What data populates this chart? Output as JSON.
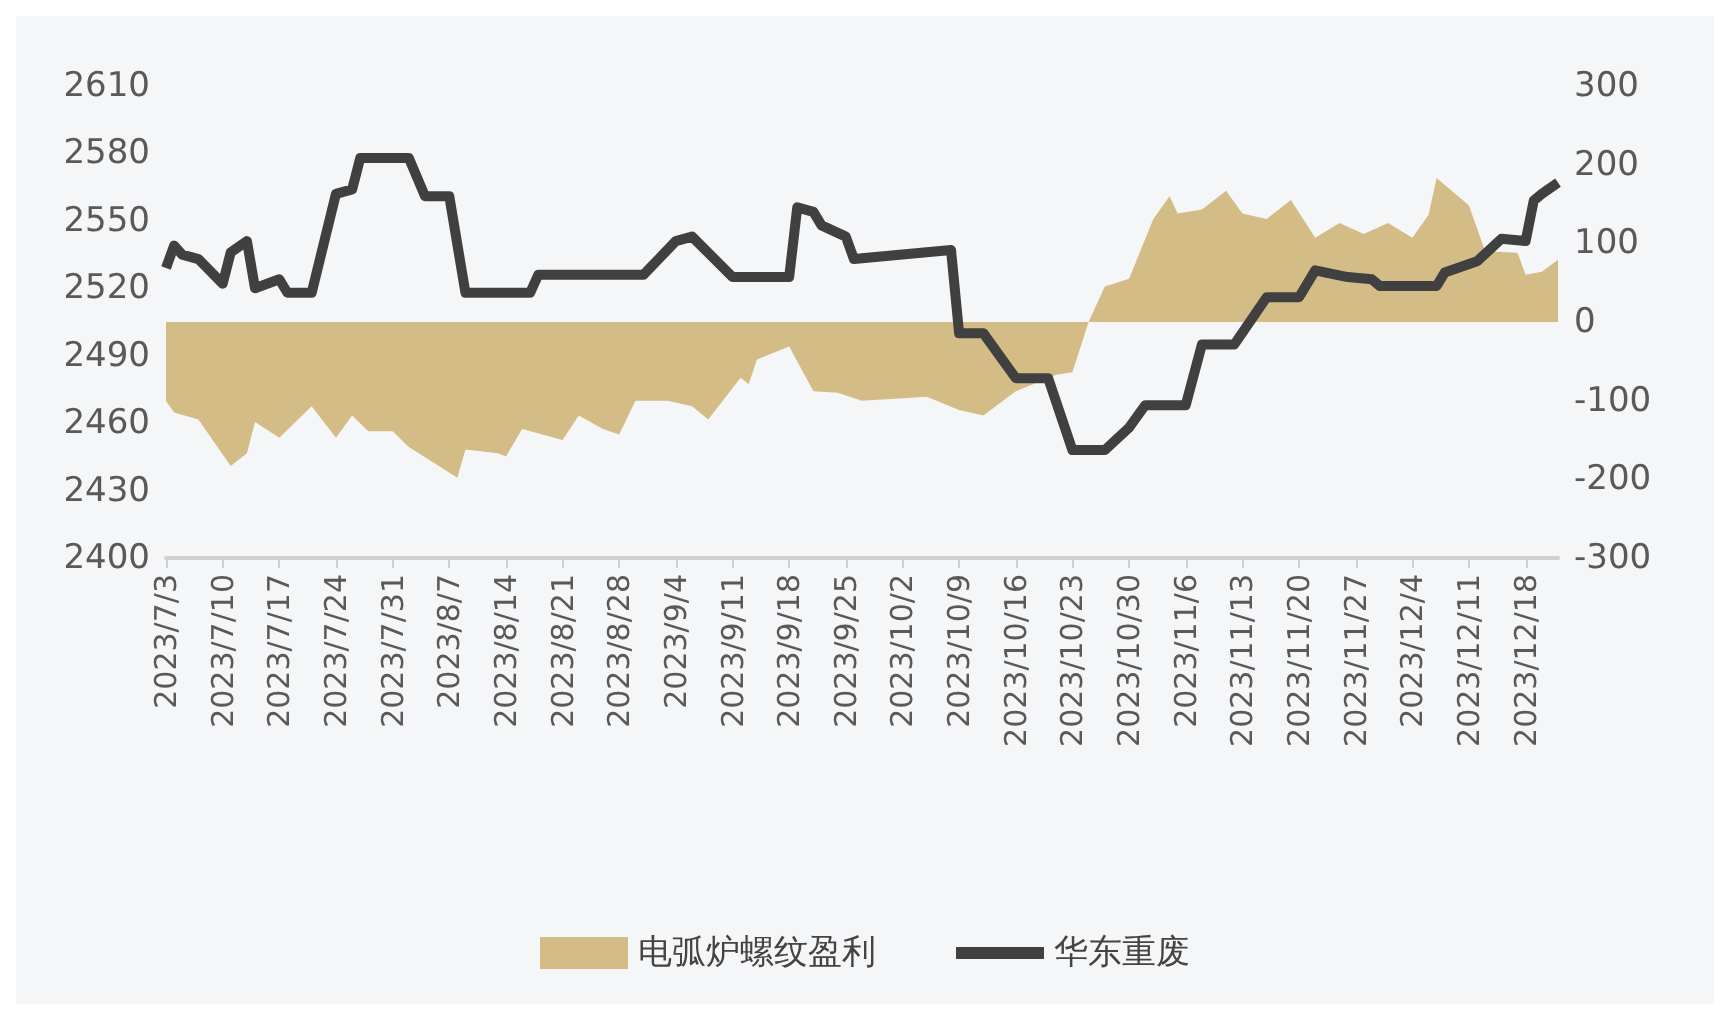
{
  "chart_data": {
    "type": "line",
    "legend": "bottom",
    "grid": false,
    "marker": "none",
    "line_style": "solid",
    "xlim": [
      "2023-07-03",
      "2023-12-22"
    ],
    "xticks": [
      {
        "value": "2023-07-03",
        "label": "2023/7/3"
      },
      {
        "value": "2023-07-10",
        "label": "2023/7/10"
      },
      {
        "value": "2023-07-17",
        "label": "2023/7/17"
      },
      {
        "value": "2023-07-24",
        "label": "2023/7/24"
      },
      {
        "value": "2023-07-31",
        "label": "2023/7/31"
      },
      {
        "value": "2023-08-07",
        "label": "2023/8/7"
      },
      {
        "value": "2023-08-14",
        "label": "2023/8/14"
      },
      {
        "value": "2023-08-21",
        "label": "2023/8/21"
      },
      {
        "value": "2023-08-28",
        "label": "2023/8/28"
      },
      {
        "value": "2023-09-04",
        "label": "2023/9/4"
      },
      {
        "value": "2023-09-11",
        "label": "2023/9/11"
      },
      {
        "value": "2023-09-18",
        "label": "2023/9/18"
      },
      {
        "value": "2023-09-25",
        "label": "2023/9/25"
      },
      {
        "value": "2023-10-02",
        "label": "2023/10/2"
      },
      {
        "value": "2023-10-09",
        "label": "2023/10/9"
      },
      {
        "value": "2023-10-16",
        "label": "2023/10/16"
      },
      {
        "value": "2023-10-23",
        "label": "2023/10/23"
      },
      {
        "value": "2023-10-30",
        "label": "2023/10/30"
      },
      {
        "value": "2023-11-06",
        "label": "2023/11/6"
      },
      {
        "value": "2023-11-13",
        "label": "2023/11/13"
      },
      {
        "value": "2023-11-20",
        "label": "2023/11/20"
      },
      {
        "value": "2023-11-27",
        "label": "2023/11/27"
      },
      {
        "value": "2023-12-04",
        "label": "2023/12/4"
      },
      {
        "value": "2023-12-11",
        "label": "2023/12/11"
      },
      {
        "value": "2023-12-18",
        "label": "2023/12/18"
      }
    ],
    "ylim": [
      2400,
      2610
    ],
    "yticks": [
      2400,
      2430,
      2460,
      2490,
      2520,
      2550,
      2580,
      2610
    ],
    "y2lim": [
      -300,
      300
    ],
    "y2ticks": [
      -300,
      -200,
      -100,
      0,
      100,
      200,
      300
    ],
    "series": [
      {
        "name": "电弧炉螺纹盈利",
        "type": "area",
        "axis": "y2",
        "color": "#d4bc87",
        "x": [
          "2023-07-03",
          "2023-07-04",
          "2023-07-07",
          "2023-07-11",
          "2023-07-13",
          "2023-07-14",
          "2023-07-17",
          "2023-07-21",
          "2023-07-24",
          "2023-07-26",
          "2023-07-28",
          "2023-07-31",
          "2023-08-02",
          "2023-08-08",
          "2023-08-09",
          "2023-08-13",
          "2023-08-14",
          "2023-08-16",
          "2023-08-21",
          "2023-08-23",
          "2023-08-26",
          "2023-08-28",
          "2023-08-30",
          "2023-09-03",
          "2023-09-06",
          "2023-09-08",
          "2023-09-12",
          "2023-09-13",
          "2023-09-14",
          "2023-09-18",
          "2023-09-21",
          "2023-09-24",
          "2023-09-27",
          "2023-10-05",
          "2023-10-09",
          "2023-10-12",
          "2023-10-16",
          "2023-10-21",
          "2023-10-23",
          "2023-10-25",
          "2023-10-27",
          "2023-10-30",
          "2023-11-02",
          "2023-11-04",
          "2023-11-05",
          "2023-11-08",
          "2023-11-11",
          "2023-11-13",
          "2023-11-16",
          "2023-11-19",
          "2023-11-22",
          "2023-11-25",
          "2023-11-28",
          "2023-12-01",
          "2023-12-04",
          "2023-12-06",
          "2023-12-07",
          "2023-12-11",
          "2023-12-13",
          "2023-12-17",
          "2023-12-18",
          "2023-12-20",
          "2023-12-22"
        ],
        "values": [
          -100,
          -115,
          -124,
          -183,
          -167,
          -127,
          -147,
          -107,
          -147,
          -119,
          -139,
          -139,
          -159,
          -198,
          -162,
          -167,
          -171,
          -136,
          -150,
          -119,
          -136,
          -143,
          -100,
          -100,
          -107,
          -124,
          -71,
          -79,
          -48,
          -31,
          -88,
          -90,
          -100,
          -95,
          -112,
          -119,
          -88,
          -67,
          -64,
          0,
          45,
          55,
          131,
          160,
          138,
          143,
          167,
          138,
          131,
          155,
          107,
          126,
          112,
          126,
          107,
          136,
          183,
          148,
          90,
          88,
          60,
          64,
          79
        ]
      },
      {
        "name": "华东重废",
        "color": "#404040",
        "x": [
          "2023-07-03",
          "2023-07-04",
          "2023-07-05",
          "2023-07-07",
          "2023-07-10",
          "2023-07-11",
          "2023-07-13",
          "2023-07-14",
          "2023-07-17",
          "2023-07-18",
          "2023-07-21",
          "2023-07-24",
          "2023-07-26",
          "2023-07-27",
          "2023-08-02",
          "2023-08-04",
          "2023-08-07",
          "2023-08-09",
          "2023-08-17",
          "2023-08-18",
          "2023-08-31",
          "2023-09-04",
          "2023-09-06",
          "2023-09-11",
          "2023-09-18",
          "2023-09-19",
          "2023-09-21",
          "2023-09-22",
          "2023-09-25",
          "2023-09-26",
          "2023-10-08",
          "2023-10-09",
          "2023-10-12",
          "2023-10-16",
          "2023-10-20",
          "2023-10-23",
          "2023-10-27",
          "2023-10-30",
          "2023-11-01",
          "2023-11-06",
          "2023-11-08",
          "2023-11-12",
          "2023-11-16",
          "2023-11-20",
          "2023-11-22",
          "2023-11-26",
          "2023-11-29",
          "2023-11-30",
          "2023-12-07",
          "2023-12-08",
          "2023-12-12",
          "2023-12-15",
          "2023-12-18",
          "2023-12-19",
          "2023-12-20",
          "2023-12-22"
        ],
        "values": [
          2529,
          2539,
          2535,
          2533,
          2522,
          2536,
          2541,
          2520,
          2524,
          2518,
          2518,
          2562,
          2564,
          2578,
          2578,
          2561,
          2561,
          2518,
          2518,
          2526,
          2526,
          2541,
          2543,
          2525,
          2525,
          2556,
          2554,
          2548,
          2543,
          2533,
          2537,
          2500,
          2500,
          2480,
          2480,
          2448,
          2448,
          2458,
          2468,
          2468,
          2495,
          2495,
          2516,
          2516,
          2528,
          2525,
          2524,
          2521,
          2521,
          2527,
          2532,
          2542,
          2541,
          2559,
          2562,
          2567
        ]
      }
    ]
  }
}
